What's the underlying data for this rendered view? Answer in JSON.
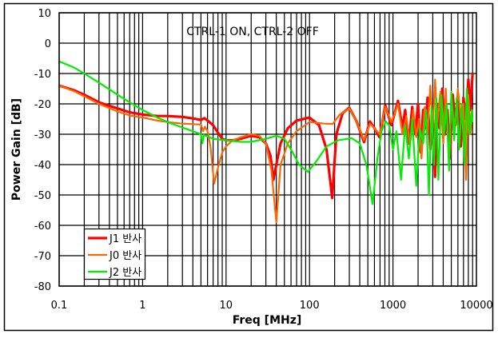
{
  "chart_data": {
    "type": "line",
    "title": "CTRL-1 ON, CTRL-2 OFF",
    "xlabel": "Freq [MHz]",
    "ylabel": "Power Gain [dB]",
    "xscale": "log",
    "xlim": [
      0.1,
      10000
    ],
    "ylim": [
      -80,
      10
    ],
    "xticks": [
      "0.1",
      "1",
      "10",
      "100",
      "1000",
      "10000"
    ],
    "xtick_values": [
      0.1,
      1,
      10,
      100,
      1000,
      10000
    ],
    "yticks": [
      "10",
      "0",
      "-10",
      "-20",
      "-30",
      "-40",
      "-50",
      "-60",
      "-70",
      "-80"
    ],
    "ytick_values": [
      10,
      0,
      -10,
      -20,
      -30,
      -40,
      -50,
      -60,
      -70,
      -80
    ],
    "grid": true,
    "legend_position": "bottom-left",
    "series": [
      {
        "name": "J1 반사",
        "color": "#ff0000",
        "points": [
          [
            0.1,
            -14
          ],
          [
            0.15,
            -15.5
          ],
          [
            0.2,
            -17
          ],
          [
            0.3,
            -19.5
          ],
          [
            0.5,
            -21.5
          ],
          [
            0.7,
            -22.8
          ],
          [
            1,
            -23.5
          ],
          [
            1.5,
            -24
          ],
          [
            2,
            -24
          ],
          [
            3,
            -24.3
          ],
          [
            4,
            -24.8
          ],
          [
            5,
            -25.3
          ],
          [
            5.5,
            -24.7
          ],
          [
            6,
            -25.5
          ],
          [
            7,
            -27
          ],
          [
            8,
            -29.5
          ],
          [
            9,
            -31.5
          ],
          [
            10,
            -32
          ],
          [
            12,
            -32
          ],
          [
            15,
            -31.5
          ],
          [
            20,
            -30.5
          ],
          [
            25,
            -31
          ],
          [
            30,
            -33
          ],
          [
            34,
            -37
          ],
          [
            37,
            -45
          ],
          [
            40,
            -40
          ],
          [
            45,
            -33
          ],
          [
            55,
            -28
          ],
          [
            70,
            -25.5
          ],
          [
            100,
            -24.5
          ],
          [
            130,
            -27
          ],
          [
            160,
            -35
          ],
          [
            187,
            -51
          ],
          [
            210,
            -30
          ],
          [
            250,
            -23
          ],
          [
            300,
            -21.3
          ],
          [
            370,
            -26
          ],
          [
            450,
            -32.6
          ],
          [
            530,
            -25.8
          ],
          [
            600,
            -28
          ],
          [
            690,
            -31
          ],
          [
            810,
            -20.5
          ],
          [
            960,
            -27
          ],
          [
            1150,
            -19
          ],
          [
            1300,
            -28
          ],
          [
            1400,
            -22
          ],
          [
            1550,
            -33
          ],
          [
            1700,
            -21
          ],
          [
            1850,
            -30
          ],
          [
            2000,
            -20
          ],
          [
            2150,
            -36
          ],
          [
            2300,
            -22
          ],
          [
            2450,
            -28
          ],
          [
            2600,
            -18
          ],
          [
            2800,
            -35
          ],
          [
            3000,
            -24
          ],
          [
            3200,
            -44
          ],
          [
            3400,
            -20
          ],
          [
            3600,
            -28
          ],
          [
            3900,
            -15
          ],
          [
            4200,
            -30
          ],
          [
            4500,
            -22
          ],
          [
            4800,
            -38
          ],
          [
            5200,
            -17
          ],
          [
            5600,
            -27
          ],
          [
            6000,
            -20
          ],
          [
            6500,
            -34
          ],
          [
            7000,
            -18
          ],
          [
            7500,
            -25
          ],
          [
            8000,
            -12
          ],
          [
            8500,
            -22
          ],
          [
            9000,
            -10
          ]
        ]
      },
      {
        "name": "J0 반사",
        "color": "#ff6600",
        "points": [
          [
            0.1,
            -14
          ],
          [
            0.15,
            -15.8
          ],
          [
            0.2,
            -17.5
          ],
          [
            0.3,
            -20
          ],
          [
            0.5,
            -22.5
          ],
          [
            0.7,
            -23.8
          ],
          [
            1,
            -24.5
          ],
          [
            1.5,
            -25.5
          ],
          [
            2,
            -26
          ],
          [
            3,
            -26.5
          ],
          [
            5,
            -26.8
          ],
          [
            5.3,
            -29
          ],
          [
            5.6,
            -27.5
          ],
          [
            6,
            -29
          ],
          [
            6.5,
            -34
          ],
          [
            7.2,
            -46.3
          ],
          [
            8,
            -41
          ],
          [
            9,
            -36
          ],
          [
            10,
            -34
          ],
          [
            12,
            -32
          ],
          [
            15,
            -31
          ],
          [
            20,
            -30
          ],
          [
            25,
            -30.5
          ],
          [
            30,
            -33
          ],
          [
            35,
            -42
          ],
          [
            40,
            -59
          ],
          [
            45,
            -40
          ],
          [
            55,
            -33
          ],
          [
            70,
            -29
          ],
          [
            100,
            -26
          ],
          [
            150,
            -26.5
          ],
          [
            190,
            -26.6
          ],
          [
            230,
            -23.5
          ],
          [
            300,
            -21.5
          ],
          [
            370,
            -26
          ],
          [
            450,
            -32
          ],
          [
            530,
            -26.5
          ],
          [
            600,
            -28
          ],
          [
            690,
            -30
          ],
          [
            810,
            -21
          ],
          [
            960,
            -26
          ],
          [
            1150,
            -20
          ],
          [
            1300,
            -30
          ],
          [
            1450,
            -24
          ],
          [
            1600,
            -34
          ],
          [
            1750,
            -22
          ],
          [
            1900,
            -31
          ],
          [
            2050,
            -25
          ],
          [
            2200,
            -38
          ],
          [
            2400,
            -21
          ],
          [
            2600,
            -30
          ],
          [
            2800,
            -14
          ],
          [
            3000,
            -28
          ],
          [
            3200,
            -12
          ],
          [
            3400,
            -26
          ],
          [
            3700,
            -16
          ],
          [
            4000,
            -33
          ],
          [
            4300,
            -15
          ],
          [
            4700,
            -41
          ],
          [
            5000,
            -18
          ],
          [
            5500,
            -29
          ],
          [
            6000,
            -15
          ],
          [
            6500,
            -25
          ],
          [
            7000,
            -20
          ],
          [
            7500,
            -45
          ],
          [
            8000,
            -17
          ],
          [
            8500,
            -30
          ],
          [
            9000,
            -22
          ]
        ]
      },
      {
        "name": "J2 반사",
        "color": "#00ee00",
        "points": [
          [
            0.1,
            -6
          ],
          [
            0.15,
            -8
          ],
          [
            0.2,
            -10
          ],
          [
            0.3,
            -13
          ],
          [
            0.5,
            -17
          ],
          [
            0.7,
            -19.5
          ],
          [
            1,
            -22
          ],
          [
            1.5,
            -24.5
          ],
          [
            2,
            -26
          ],
          [
            3,
            -27.8
          ],
          [
            4,
            -29
          ],
          [
            5,
            -30
          ],
          [
            5.2,
            -33
          ],
          [
            5.4,
            -30.2
          ],
          [
            7,
            -31.5
          ],
          [
            10,
            -32
          ],
          [
            15,
            -32.5
          ],
          [
            20,
            -32.5
          ],
          [
            30,
            -31.5
          ],
          [
            40,
            -30.5
          ],
          [
            50,
            -31.5
          ],
          [
            60,
            -35
          ],
          [
            75,
            -40
          ],
          [
            96,
            -42.4
          ],
          [
            120,
            -39
          ],
          [
            160,
            -34
          ],
          [
            220,
            -32
          ],
          [
            320,
            -31.3
          ],
          [
            400,
            -33
          ],
          [
            480,
            -40
          ],
          [
            570,
            -53
          ],
          [
            650,
            -38
          ],
          [
            730,
            -29
          ],
          [
            820,
            -25.8
          ],
          [
            900,
            -27
          ],
          [
            1000,
            -35
          ],
          [
            1100,
            -29
          ],
          [
            1250,
            -45
          ],
          [
            1400,
            -27
          ],
          [
            1550,
            -38
          ],
          [
            1700,
            -25
          ],
          [
            1900,
            -47
          ],
          [
            2100,
            -28
          ],
          [
            2300,
            -33
          ],
          [
            2500,
            -22
          ],
          [
            2700,
            -50
          ],
          [
            2900,
            -21
          ],
          [
            3100,
            -40
          ],
          [
            3300,
            -18
          ],
          [
            3500,
            -45
          ],
          [
            3800,
            -17
          ],
          [
            4100,
            -30
          ],
          [
            4400,
            -20
          ],
          [
            4700,
            -42
          ],
          [
            5000,
            -16
          ],
          [
            5400,
            -32
          ],
          [
            5800,
            -18
          ],
          [
            6200,
            -35
          ],
          [
            6700,
            -20
          ],
          [
            7200,
            -40
          ],
          [
            7700,
            -15
          ],
          [
            8200,
            -30
          ],
          [
            8800,
            -22
          ],
          [
            9000,
            -26
          ]
        ]
      }
    ]
  }
}
